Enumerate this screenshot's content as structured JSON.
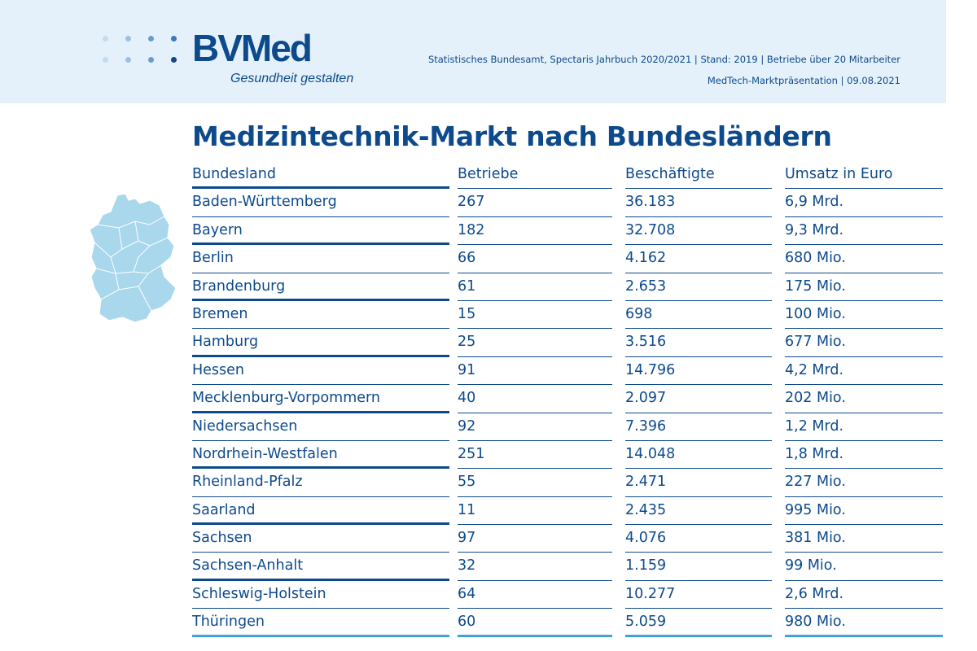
{
  "header": {
    "logo_text": "BVMed",
    "logo_tagline": "Gesundheit gestalten",
    "meta_line1": "Statistisches Bundesamt, Spectaris Jahrbuch 2020/2021 | Stand: 2019 | Betriebe über 20  Mitarbeiter",
    "meta_line2": "MedTech-Marktpräsentation |  09.08.2021"
  },
  "title": "Medizintechnik-Markt nach Bundesländern",
  "icons": {
    "map": "germany-map-icon",
    "logo": "bvmed-dots-icon"
  },
  "colors": {
    "primary": "#0d4a8c",
    "header_bg": "#e4f1fa",
    "map_fill": "#a9d7ec",
    "accent_line": "#3ea3d6"
  },
  "table": {
    "headers": [
      "Bundesland",
      "Betriebe",
      "Beschäftigte",
      "Umsatz in Euro"
    ],
    "rows": [
      [
        "Baden-Württemberg",
        "267",
        "36.183",
        "6,9 Mrd."
      ],
      [
        "Bayern",
        "182",
        "32.708",
        "9,3 Mrd."
      ],
      [
        "Berlin",
        "66",
        "4.162",
        "680 Mio."
      ],
      [
        "Brandenburg",
        "61",
        "2.653",
        "175 Mio."
      ],
      [
        "Bremen",
        "15",
        "698",
        "100 Mio."
      ],
      [
        "Hamburg",
        "25",
        "3.516",
        "677 Mio."
      ],
      [
        "Hessen",
        "91",
        "14.796",
        "4,2 Mrd."
      ],
      [
        "Mecklenburg-Vorpommern",
        "40",
        "2.097",
        "202 Mio."
      ],
      [
        "Niedersachsen",
        "92",
        "7.396",
        "1,2 Mrd."
      ],
      [
        "Nordrhein-Westfalen",
        "251",
        "14.048",
        "1,8 Mrd."
      ],
      [
        "Rheinland-Pfalz",
        "55",
        "2.471",
        "227 Mio."
      ],
      [
        "Saarland",
        "11",
        "2.435",
        "995 Mio."
      ],
      [
        "Sachsen",
        "97",
        "4.076",
        "381 Mio."
      ],
      [
        "Sachsen-Anhalt",
        "32",
        "1.159",
        "99 Mio."
      ],
      [
        "Schleswig-Holstein",
        "64",
        "10.277",
        "2,6 Mrd."
      ],
      [
        "Thüringen",
        "60",
        "5.059",
        "980 Mio."
      ]
    ]
  }
}
